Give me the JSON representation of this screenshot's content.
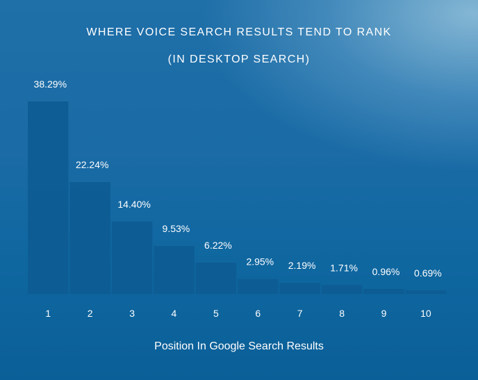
{
  "chart_data": {
    "type": "bar",
    "title": "WHERE VOICE SEARCH RESULTS TEND TO RANK",
    "subtitle": "(IN DESKTOP SEARCH)",
    "xlabel": "Position In Google Search Results",
    "ylabel": "",
    "categories": [
      "1",
      "2",
      "3",
      "4",
      "5",
      "6",
      "7",
      "8",
      "9",
      "10"
    ],
    "values": [
      38.29,
      22.24,
      14.4,
      9.53,
      6.22,
      2.95,
      2.19,
      1.71,
      0.96,
      0.69
    ],
    "value_labels": [
      "38.29%",
      "22.24%",
      "14.40%",
      "9.53%",
      "6.22%",
      "2.95%",
      "2.19%",
      "1.71%",
      "0.96%",
      "0.69%"
    ],
    "ylim": [
      0,
      40
    ],
    "grid": false,
    "bar_color": "#0d5a92",
    "text_color": "#ffffff"
  }
}
